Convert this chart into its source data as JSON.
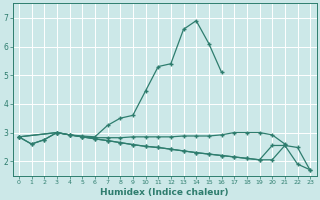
{
  "xlabel": "Humidex (Indice chaleur)",
  "background_color": "#cce8e8",
  "grid_color": "#ffffff",
  "line_color": "#2e7d6e",
  "x_values": [
    0,
    1,
    2,
    3,
    4,
    5,
    6,
    7,
    8,
    9,
    10,
    11,
    12,
    13,
    14,
    15,
    16,
    17,
    18,
    19,
    20,
    21,
    22,
    23
  ],
  "line1": [
    2.85,
    2.6,
    2.75,
    3.0,
    2.92,
    2.88,
    2.85,
    3.25,
    3.5,
    3.6,
    4.45,
    5.3,
    5.4,
    6.6,
    6.9,
    6.1,
    5.1,
    null,
    null,
    null,
    null,
    null,
    null,
    null
  ],
  "line2": [
    2.85,
    2.6,
    2.75,
    3.0,
    2.92,
    2.85,
    2.82,
    2.82,
    2.82,
    2.85,
    2.85,
    2.85,
    2.85,
    2.88,
    2.88,
    2.88,
    2.92,
    3.0,
    3.0,
    3.0,
    2.92,
    2.6,
    null,
    null
  ],
  "line3": [
    2.85,
    null,
    null,
    3.0,
    2.92,
    2.85,
    2.78,
    2.72,
    2.65,
    2.58,
    2.52,
    2.48,
    2.42,
    2.36,
    2.3,
    2.25,
    2.2,
    2.15,
    2.1,
    2.05,
    2.55,
    2.55,
    1.9,
    1.7
  ],
  "line4": [
    2.85,
    null,
    null,
    3.0,
    2.92,
    2.85,
    2.78,
    2.72,
    2.65,
    2.58,
    2.52,
    2.48,
    2.42,
    2.36,
    2.3,
    2.25,
    2.2,
    2.15,
    2.1,
    2.05,
    2.05,
    2.55,
    2.48,
    1.68
  ],
  "ylim": [
    1.5,
    7.5
  ],
  "xlim": [
    -0.5,
    23.5
  ],
  "yticks": [
    2,
    3,
    4,
    5,
    6,
    7
  ],
  "xticks": [
    0,
    1,
    2,
    3,
    4,
    5,
    6,
    7,
    8,
    9,
    10,
    11,
    12,
    13,
    14,
    15,
    16,
    17,
    18,
    19,
    20,
    21,
    22,
    23
  ],
  "xlabel_fontsize": 6.5,
  "tick_fontsize": 4.5,
  "ytick_fontsize": 5.5,
  "linewidth": 0.9,
  "markersize": 2.5
}
